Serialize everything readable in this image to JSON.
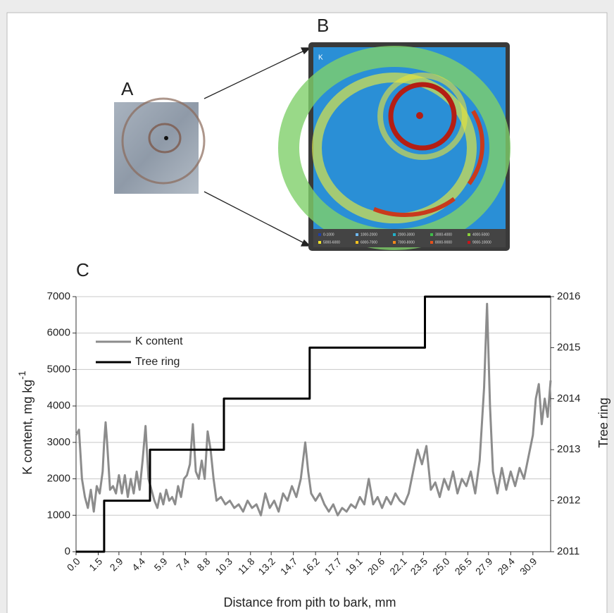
{
  "figure": {
    "panel_a": "A",
    "panel_b": "B",
    "panel_c": "C",
    "map_element": "K",
    "map_legend": [
      "0-1000",
      "1000-2000",
      "2000-3000",
      "3000-4000",
      "4000-5000",
      "5000-6000",
      "6000-7000",
      "7000-8000",
      "8000-9000",
      "9000-10000"
    ]
  },
  "chart_data": {
    "type": "line",
    "xlabel": "Distance from pith to bark, mm",
    "ylabel": "K content, mg kg",
    "ylabel_superscript": "-1",
    "y2label": "Tree ring",
    "xlim": [
      0,
      32.1
    ],
    "xticks": [
      {
        "value": 0,
        "label": "0.0"
      },
      1.5,
      2.9,
      4.4,
      5.9,
      7.4,
      8.8,
      10.3,
      11.8,
      13.2,
      14.7,
      16.2,
      17.7,
      19.1,
      20.6,
      22.1,
      23.5,
      {
        "value": 25,
        "label": "25.0"
      },
      26.5,
      27.9,
      29.4,
      30.9
    ],
    "ylim": [
      0,
      7000
    ],
    "yticks": [
      0,
      1000,
      2000,
      3000,
      4000,
      5000,
      6000,
      7000
    ],
    "y2lim": [
      2011,
      2016
    ],
    "y2ticks": [
      2011,
      2012,
      2013,
      2014,
      2015,
      2016
    ],
    "grid": true,
    "legend": "upper left",
    "series": [
      {
        "name": "K content",
        "color": "#8c8c8c",
        "x": [
          0,
          0.2,
          0.4,
          0.6,
          0.8,
          1.0,
          1.2,
          1.4,
          1.6,
          1.8,
          1.9,
          2.0,
          2.1,
          2.3,
          2.5,
          2.7,
          2.9,
          3.1,
          3.3,
          3.5,
          3.7,
          3.9,
          4.1,
          4.3,
          4.5,
          4.7,
          4.9,
          5.1,
          5.3,
          5.5,
          5.7,
          5.9,
          6.1,
          6.3,
          6.5,
          6.7,
          6.9,
          7.1,
          7.3,
          7.5,
          7.7,
          7.9,
          8.1,
          8.3,
          8.5,
          8.7,
          8.9,
          9.1,
          9.3,
          9.5,
          9.8,
          10.1,
          10.4,
          10.7,
          11.0,
          11.3,
          11.6,
          11.9,
          12.2,
          12.5,
          12.8,
          13.1,
          13.4,
          13.7,
          14.0,
          14.3,
          14.6,
          14.9,
          15.2,
          15.5,
          15.7,
          15.9,
          16.2,
          16.5,
          16.8,
          17.1,
          17.4,
          17.7,
          18.0,
          18.3,
          18.6,
          18.9,
          19.2,
          19.5,
          19.8,
          20.1,
          20.4,
          20.7,
          21.0,
          21.3,
          21.6,
          21.9,
          22.2,
          22.5,
          22.8,
          23.1,
          23.4,
          23.7,
          24.0,
          24.3,
          24.6,
          24.9,
          25.2,
          25.5,
          25.8,
          26.1,
          26.4,
          26.7,
          27.0,
          27.3,
          27.6,
          27.8,
          28.0,
          28.2,
          28.5,
          28.8,
          29.1,
          29.4,
          29.7,
          30.0,
          30.3,
          30.6,
          30.9,
          31.1,
          31.3,
          31.5,
          31.7,
          31.9,
          32.1
        ],
        "values": [
          3200,
          3350,
          2000,
          1500,
          1200,
          1700,
          1100,
          1800,
          1600,
          2200,
          3000,
          3550,
          3000,
          1700,
          1800,
          1600,
          2100,
          1600,
          2100,
          1500,
          2000,
          1600,
          2200,
          1700,
          2500,
          3450,
          2000,
          1700,
          1400,
          1200,
          1600,
          1300,
          1700,
          1400,
          1500,
          1300,
          1800,
          1500,
          2000,
          2100,
          2400,
          3500,
          2200,
          2000,
          2500,
          2000,
          3300,
          2800,
          2000,
          1400,
          1500,
          1300,
          1400,
          1200,
          1300,
          1100,
          1400,
          1200,
          1300,
          1000,
          1600,
          1200,
          1400,
          1100,
          1600,
          1400,
          1800,
          1500,
          2000,
          3000,
          2200,
          1600,
          1400,
          1600,
          1300,
          1100,
          1300,
          1000,
          1200,
          1100,
          1300,
          1200,
          1500,
          1300,
          2000,
          1300,
          1500,
          1200,
          1500,
          1300,
          1600,
          1400,
          1300,
          1600,
          2200,
          2800,
          2400,
          2900,
          1700,
          1900,
          1500,
          2000,
          1700,
          2200,
          1600,
          2000,
          1800,
          2200,
          1600,
          2500,
          4500,
          6800,
          4000,
          2200,
          1600,
          2300,
          1700,
          2200,
          1800,
          2300,
          2000,
          2600,
          3200,
          4200,
          4600,
          3500,
          4200,
          3700,
          4700
        ]
      },
      {
        "name": "Tree ring",
        "color": "#000000",
        "axis": "y2",
        "x": [
          0,
          1.9,
          1.9,
          5.0,
          5.0,
          10.0,
          10.0,
          15.8,
          15.8,
          23.6,
          23.6,
          32.1
        ],
        "values": [
          2011,
          2011,
          2012,
          2012,
          2013,
          2013,
          2014,
          2014,
          2015,
          2015,
          2016,
          2016
        ]
      }
    ]
  }
}
